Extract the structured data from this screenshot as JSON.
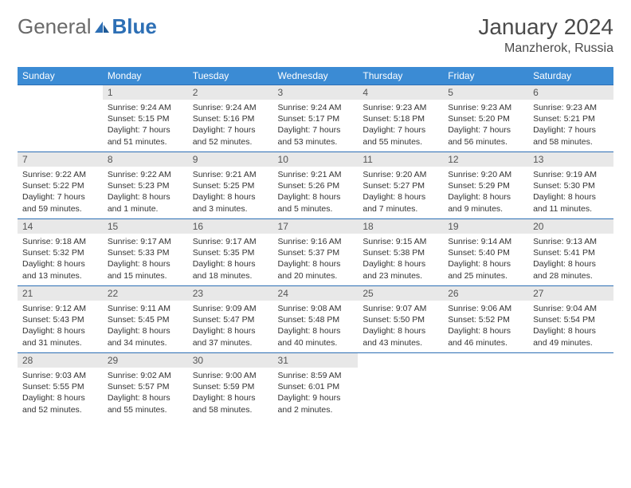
{
  "brand": {
    "part1": "General",
    "part2": "Blue"
  },
  "title": "January 2024",
  "location": "Manzherok, Russia",
  "colors": {
    "header_bg": "#3b8bd4",
    "header_text": "#ffffff",
    "border": "#2d6fb5",
    "daynum_bg": "#e8e8e8",
    "text": "#333333",
    "brand_gray": "#6a6a6a",
    "brand_blue": "#2d6fb5"
  },
  "weekdays": [
    "Sunday",
    "Monday",
    "Tuesday",
    "Wednesday",
    "Thursday",
    "Friday",
    "Saturday"
  ],
  "weeks": [
    [
      {
        "n": "",
        "sunrise": "",
        "sunset": "",
        "daylight": ""
      },
      {
        "n": "1",
        "sunrise": "Sunrise: 9:24 AM",
        "sunset": "Sunset: 5:15 PM",
        "daylight": "Daylight: 7 hours and 51 minutes."
      },
      {
        "n": "2",
        "sunrise": "Sunrise: 9:24 AM",
        "sunset": "Sunset: 5:16 PM",
        "daylight": "Daylight: 7 hours and 52 minutes."
      },
      {
        "n": "3",
        "sunrise": "Sunrise: 9:24 AM",
        "sunset": "Sunset: 5:17 PM",
        "daylight": "Daylight: 7 hours and 53 minutes."
      },
      {
        "n": "4",
        "sunrise": "Sunrise: 9:23 AM",
        "sunset": "Sunset: 5:18 PM",
        "daylight": "Daylight: 7 hours and 55 minutes."
      },
      {
        "n": "5",
        "sunrise": "Sunrise: 9:23 AM",
        "sunset": "Sunset: 5:20 PM",
        "daylight": "Daylight: 7 hours and 56 minutes."
      },
      {
        "n": "6",
        "sunrise": "Sunrise: 9:23 AM",
        "sunset": "Sunset: 5:21 PM",
        "daylight": "Daylight: 7 hours and 58 minutes."
      }
    ],
    [
      {
        "n": "7",
        "sunrise": "Sunrise: 9:22 AM",
        "sunset": "Sunset: 5:22 PM",
        "daylight": "Daylight: 7 hours and 59 minutes."
      },
      {
        "n": "8",
        "sunrise": "Sunrise: 9:22 AM",
        "sunset": "Sunset: 5:23 PM",
        "daylight": "Daylight: 8 hours and 1 minute."
      },
      {
        "n": "9",
        "sunrise": "Sunrise: 9:21 AM",
        "sunset": "Sunset: 5:25 PM",
        "daylight": "Daylight: 8 hours and 3 minutes."
      },
      {
        "n": "10",
        "sunrise": "Sunrise: 9:21 AM",
        "sunset": "Sunset: 5:26 PM",
        "daylight": "Daylight: 8 hours and 5 minutes."
      },
      {
        "n": "11",
        "sunrise": "Sunrise: 9:20 AM",
        "sunset": "Sunset: 5:27 PM",
        "daylight": "Daylight: 8 hours and 7 minutes."
      },
      {
        "n": "12",
        "sunrise": "Sunrise: 9:20 AM",
        "sunset": "Sunset: 5:29 PM",
        "daylight": "Daylight: 8 hours and 9 minutes."
      },
      {
        "n": "13",
        "sunrise": "Sunrise: 9:19 AM",
        "sunset": "Sunset: 5:30 PM",
        "daylight": "Daylight: 8 hours and 11 minutes."
      }
    ],
    [
      {
        "n": "14",
        "sunrise": "Sunrise: 9:18 AM",
        "sunset": "Sunset: 5:32 PM",
        "daylight": "Daylight: 8 hours and 13 minutes."
      },
      {
        "n": "15",
        "sunrise": "Sunrise: 9:17 AM",
        "sunset": "Sunset: 5:33 PM",
        "daylight": "Daylight: 8 hours and 15 minutes."
      },
      {
        "n": "16",
        "sunrise": "Sunrise: 9:17 AM",
        "sunset": "Sunset: 5:35 PM",
        "daylight": "Daylight: 8 hours and 18 minutes."
      },
      {
        "n": "17",
        "sunrise": "Sunrise: 9:16 AM",
        "sunset": "Sunset: 5:37 PM",
        "daylight": "Daylight: 8 hours and 20 minutes."
      },
      {
        "n": "18",
        "sunrise": "Sunrise: 9:15 AM",
        "sunset": "Sunset: 5:38 PM",
        "daylight": "Daylight: 8 hours and 23 minutes."
      },
      {
        "n": "19",
        "sunrise": "Sunrise: 9:14 AM",
        "sunset": "Sunset: 5:40 PM",
        "daylight": "Daylight: 8 hours and 25 minutes."
      },
      {
        "n": "20",
        "sunrise": "Sunrise: 9:13 AM",
        "sunset": "Sunset: 5:41 PM",
        "daylight": "Daylight: 8 hours and 28 minutes."
      }
    ],
    [
      {
        "n": "21",
        "sunrise": "Sunrise: 9:12 AM",
        "sunset": "Sunset: 5:43 PM",
        "daylight": "Daylight: 8 hours and 31 minutes."
      },
      {
        "n": "22",
        "sunrise": "Sunrise: 9:11 AM",
        "sunset": "Sunset: 5:45 PM",
        "daylight": "Daylight: 8 hours and 34 minutes."
      },
      {
        "n": "23",
        "sunrise": "Sunrise: 9:09 AM",
        "sunset": "Sunset: 5:47 PM",
        "daylight": "Daylight: 8 hours and 37 minutes."
      },
      {
        "n": "24",
        "sunrise": "Sunrise: 9:08 AM",
        "sunset": "Sunset: 5:48 PM",
        "daylight": "Daylight: 8 hours and 40 minutes."
      },
      {
        "n": "25",
        "sunrise": "Sunrise: 9:07 AM",
        "sunset": "Sunset: 5:50 PM",
        "daylight": "Daylight: 8 hours and 43 minutes."
      },
      {
        "n": "26",
        "sunrise": "Sunrise: 9:06 AM",
        "sunset": "Sunset: 5:52 PM",
        "daylight": "Daylight: 8 hours and 46 minutes."
      },
      {
        "n": "27",
        "sunrise": "Sunrise: 9:04 AM",
        "sunset": "Sunset: 5:54 PM",
        "daylight": "Daylight: 8 hours and 49 minutes."
      }
    ],
    [
      {
        "n": "28",
        "sunrise": "Sunrise: 9:03 AM",
        "sunset": "Sunset: 5:55 PM",
        "daylight": "Daylight: 8 hours and 52 minutes."
      },
      {
        "n": "29",
        "sunrise": "Sunrise: 9:02 AM",
        "sunset": "Sunset: 5:57 PM",
        "daylight": "Daylight: 8 hours and 55 minutes."
      },
      {
        "n": "30",
        "sunrise": "Sunrise: 9:00 AM",
        "sunset": "Sunset: 5:59 PM",
        "daylight": "Daylight: 8 hours and 58 minutes."
      },
      {
        "n": "31",
        "sunrise": "Sunrise: 8:59 AM",
        "sunset": "Sunset: 6:01 PM",
        "daylight": "Daylight: 9 hours and 2 minutes."
      },
      {
        "n": "",
        "sunrise": "",
        "sunset": "",
        "daylight": ""
      },
      {
        "n": "",
        "sunrise": "",
        "sunset": "",
        "daylight": ""
      },
      {
        "n": "",
        "sunrise": "",
        "sunset": "",
        "daylight": ""
      }
    ]
  ]
}
